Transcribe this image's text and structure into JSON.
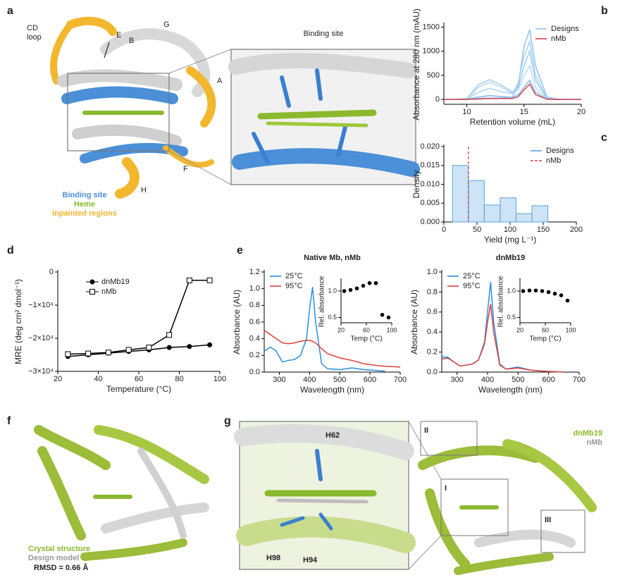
{
  "figure": {
    "panel_letters": [
      "a",
      "b",
      "c",
      "d",
      "e",
      "f",
      "g"
    ],
    "a": {
      "labels": [
        "CD",
        "loop",
        "E",
        "B",
        "G",
        "A",
        "F",
        "H"
      ],
      "inset_title": "Binding site",
      "legend": [
        "Binding site",
        "Heme",
        "Inpainted regions"
      ]
    },
    "f": {
      "legend": [
        "Crystal structure",
        "Design model"
      ],
      "rmsd": "RMSD = 0.66 Å"
    },
    "g": {
      "labels": [
        "H62",
        "H98",
        "H94",
        "II",
        "I",
        "III"
      ],
      "legend": [
        "dnMb19",
        "nMb"
      ]
    }
  },
  "chart_data": [
    {
      "type": "line",
      "xlabel": "Retention volume (mL)",
      "ylabel": "Absorbance at 280 nm (mAU)",
      "x": [
        8,
        9,
        10,
        11,
        12,
        13,
        14,
        14.5,
        15,
        15.5,
        16,
        17,
        18,
        19,
        20
      ],
      "xlim": [
        8,
        20
      ],
      "xticks": [
        10,
        15,
        20
      ],
      "ylim": [
        -100,
        1550
      ],
      "yticks": [
        0,
        500,
        1000,
        1500
      ],
      "legend": "upper right",
      "series": [
        {
          "name": "Designs",
          "color": "#8ec3ef",
          "values": [
            0,
            0,
            5,
            20,
            30,
            30,
            50,
            300,
            1100,
            1450,
            700,
            50,
            5,
            0,
            0
          ]
        },
        {
          "name": "Designs",
          "color": "#a9d2f3",
          "values": [
            0,
            0,
            10,
            150,
            230,
            160,
            120,
            350,
            900,
            1200,
            500,
            30,
            0,
            0,
            0
          ]
        },
        {
          "name": "Designs",
          "color": "#9ccbf1",
          "values": [
            0,
            0,
            20,
            300,
            410,
            300,
            150,
            250,
            700,
            1000,
            400,
            20,
            0,
            0,
            0
          ]
        },
        {
          "name": "Designs",
          "color": "#b7d9f5",
          "values": [
            0,
            0,
            10,
            250,
            350,
            260,
            120,
            200,
            500,
            700,
            250,
            10,
            0,
            0,
            0
          ]
        },
        {
          "name": "Designs",
          "color": "#7fb9ea",
          "values": [
            0,
            0,
            5,
            50,
            80,
            60,
            40,
            100,
            250,
            400,
            150,
            5,
            0,
            0,
            0
          ]
        },
        {
          "name": "nMb",
          "color": "#d8404e",
          "values": [
            0,
            0,
            0,
            10,
            20,
            20,
            20,
            60,
            200,
            320,
            100,
            5,
            0,
            0,
            0
          ]
        }
      ]
    },
    {
      "type": "histogram",
      "xlabel": "Yield (mg L⁻¹)",
      "ylabel": "Density",
      "bins": [
        13,
        37,
        61,
        85,
        109,
        133,
        157
      ],
      "xlim": [
        0,
        200
      ],
      "xticks": [
        0,
        50,
        100,
        150,
        200
      ],
      "ylim": [
        0,
        0.02
      ],
      "yticks": [
        {
          "value": 0,
          "label": "0.000"
        },
        0.005,
        {
          "value": 0.01,
          "label": "0.010"
        },
        0.015,
        {
          "value": 0.02,
          "label": "0.020"
        }
      ],
      "legend": "upper right",
      "series": [
        {
          "name": "Designs",
          "color": "#5aa3e0",
          "values": [
            0.015,
            0.011,
            0.0045,
            0.0064,
            0.0022,
            0.0043
          ]
        },
        {
          "name": "nMb",
          "color": "#d8404e",
          "x": 37
        }
      ]
    },
    {
      "type": "line",
      "xlabel": "Temperature (°C)",
      "ylabel": "MRE (deg cm² dmol⁻¹)",
      "x": [
        25,
        35,
        45,
        55,
        65,
        75,
        85,
        95
      ],
      "xlim": [
        20,
        100
      ],
      "xticks": [
        20,
        40,
        60,
        80,
        100
      ],
      "ylim": [
        -30000,
        0
      ],
      "yticks": [
        0,
        {
          "value": -10000,
          "label": "−1×10⁴"
        },
        {
          "value": -20000,
          "label": "−2×10⁴"
        },
        {
          "value": -30000,
          "label": "−3×10⁴"
        }
      ],
      "legend": "upper left",
      "series": [
        {
          "name": "dnMb19",
          "color": "#000000",
          "marker": "circle",
          "values": [
            -25500,
            -25000,
            -24500,
            -24000,
            -23500,
            -22800,
            -22500,
            -22000
          ]
        },
        {
          "name": "nMb",
          "color": "#000000",
          "marker": "square",
          "values": [
            -24800,
            -24600,
            -24300,
            -23500,
            -22800,
            -19000,
            -2500,
            -2500
          ]
        }
      ]
    },
    {
      "type": "line",
      "title": "Native Mb, nMb",
      "xlabel": "Wavelength (nm)",
      "ylabel": "Absorbance (AU)",
      "x": [
        250,
        270,
        290,
        310,
        330,
        350,
        370,
        390,
        400,
        410,
        420,
        440,
        460,
        500,
        540,
        580,
        620,
        650,
        700
      ],
      "xlim": [
        250,
        700
      ],
      "xticks": [
        300,
        400,
        500,
        600,
        700
      ],
      "ylim": [
        0,
        1.2
      ],
      "yticks": [
        {
          "value": 0,
          "label": "0.0"
        },
        0.2,
        0.4,
        0.6,
        0.8,
        {
          "value": 1,
          "label": "1.0"
        },
        1.2
      ],
      "legend": "upper left",
      "series": [
        {
          "name": "25°C",
          "color": "#2a8fe0",
          "values": [
            0.25,
            0.3,
            0.25,
            0.12,
            0.14,
            0.15,
            0.2,
            0.4,
            0.75,
            1.02,
            0.6,
            0.1,
            0.04,
            0.03,
            0.05,
            0.03,
            0.02,
            0.01,
            null
          ]
        },
        {
          "name": "95°C",
          "color": "#e0403a",
          "values": [
            0.5,
            0.45,
            0.4,
            0.35,
            0.34,
            0.35,
            0.37,
            0.38,
            0.38,
            0.37,
            0.35,
            0.28,
            0.22,
            0.17,
            0.14,
            0.1,
            0.08,
            0.07,
            0.06
          ]
        }
      ]
    },
    {
      "type": "scatter",
      "xlabel": "Temp (°C)",
      "ylabel": "Rel. absorbance",
      "color": "#000000",
      "x": [
        25,
        35,
        45,
        55,
        65,
        75,
        85,
        95
      ],
      "values": [
        1.0,
        1.02,
        1.05,
        1.1,
        1.15,
        1.15,
        0.55,
        0.5
      ],
      "xlim": [
        20,
        100
      ],
      "xticks": [
        20,
        60,
        100
      ],
      "ylim": [
        0.4,
        1.2
      ],
      "yticks": [
        0.5,
        {
          "value": 1,
          "label": "1.0"
        }
      ]
    },
    {
      "type": "line",
      "title": "dnMb19",
      "xlabel": "Wavelength (nm)",
      "ylabel": "Absorbance (AU)",
      "x": [
        250,
        270,
        290,
        310,
        330,
        350,
        370,
        390,
        400,
        410,
        420,
        440,
        460,
        500,
        540,
        580,
        650
      ],
      "xlim": [
        250,
        700
      ],
      "xticks": [
        300,
        400,
        500,
        600,
        700
      ],
      "ylim": [
        0,
        1.0
      ],
      "yticks": [
        {
          "value": 0,
          "label": "0.0"
        },
        0.2,
        0.4,
        0.6,
        0.8,
        {
          "value": 1,
          "label": "1.0"
        }
      ],
      "legend": "upper left",
      "series": [
        {
          "name": "25°C",
          "color": "#2a8fe0",
          "values": [
            0.15,
            0.15,
            0.1,
            0.06,
            0.07,
            0.08,
            0.12,
            0.3,
            0.6,
            0.9,
            0.5,
            0.08,
            0.03,
            0.05,
            0.02,
            0.01,
            0
          ]
        },
        {
          "name": "95°C",
          "color": "#e0403a",
          "values": [
            0.13,
            0.14,
            0.1,
            0.06,
            0.07,
            0.08,
            0.12,
            0.28,
            0.5,
            0.68,
            0.4,
            0.07,
            0.03,
            0.04,
            0.02,
            0.01,
            0
          ]
        }
      ]
    },
    {
      "type": "scatter",
      "xlabel": "Temp (°C)",
      "ylabel": "Rel. absorbance",
      "color": "#000000",
      "x": [
        25,
        35,
        45,
        55,
        65,
        75,
        85,
        95
      ],
      "values": [
        1.0,
        1.01,
        1.01,
        1.0,
        0.98,
        0.95,
        0.92,
        0.82
      ],
      "xlim": [
        20,
        100
      ],
      "xticks": [
        20,
        60,
        100
      ],
      "ylim": [
        0.4,
        1.2
      ],
      "yticks": [
        0.5,
        {
          "value": 1,
          "label": "1.0"
        }
      ]
    }
  ]
}
